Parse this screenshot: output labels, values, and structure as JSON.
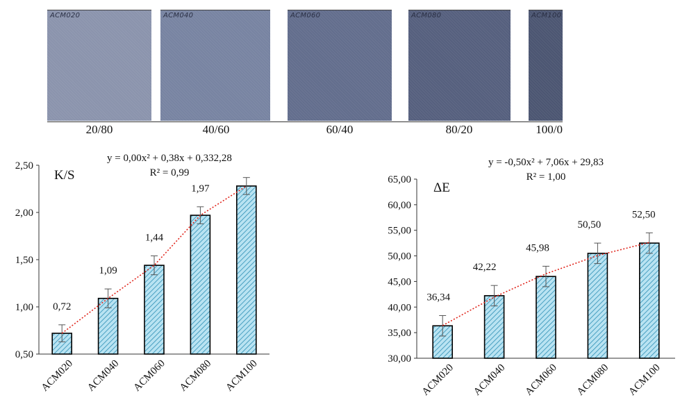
{
  "swatches": [
    {
      "tag": "ACM020",
      "ratio": "20/80",
      "color": "#8b94ad"
    },
    {
      "tag": "ACM040",
      "ratio": "40/60",
      "color": "#7884a2"
    },
    {
      "tag": "ACM060",
      "ratio": "60/40",
      "color": "#636e8d"
    },
    {
      "tag": "ACM080",
      "ratio": "80/20",
      "color": "#56607e"
    },
    {
      "tag": "ACM100",
      "ratio": "100/0",
      "color": "#4c5672"
    }
  ],
  "chart_data": [
    {
      "type": "bar",
      "title": "K/S",
      "equation": "y = 0,00x² + 0,38x + 0,332,28",
      "r2": "R² = 0,99",
      "categories": [
        "ACM020",
        "ACM040",
        "ACM060",
        "ACM080",
        "ACM100"
      ],
      "values": [
        0.72,
        1.09,
        1.44,
        1.97,
        2.28
      ],
      "value_labels": [
        "0,72",
        "1,09",
        "1,44",
        "1,97",
        ""
      ],
      "errors": [
        0.09,
        0.1,
        0.1,
        0.09,
        0.09
      ],
      "trend": [
        0.72,
        1.09,
        1.44,
        1.97,
        2.28
      ],
      "ylim": [
        0.5,
        2.5
      ],
      "yticks": [
        0.5,
        1.0,
        1.5,
        2.0,
        2.5
      ],
      "ytick_labels": [
        "0,50",
        "1,00",
        "1,50",
        "2,00",
        "2,50"
      ],
      "bar_fill": "#b9e3f2",
      "bar_hatch": "#2d8fb5",
      "trend_color": "#e0241b",
      "legend": "none",
      "grid": false
    },
    {
      "type": "bar",
      "title": "ΔE",
      "equation": "y = -0,50x² + 7,06x + 29,83",
      "r2": "R² = 1,00",
      "categories": [
        "ACM020",
        "ACM040",
        "ACM060",
        "ACM080",
        "ACM100"
      ],
      "values": [
        36.34,
        42.22,
        45.98,
        50.5,
        52.5
      ],
      "value_labels": [
        "36,34",
        "42,22",
        "45,98",
        "50,50",
        "52,50"
      ],
      "errors": [
        2.0,
        2.0,
        2.0,
        2.0,
        2.0
      ],
      "trend": [
        36.39,
        41.95,
        46.51,
        50.07,
        52.63
      ],
      "ylim": [
        30,
        65
      ],
      "yticks": [
        30,
        35,
        40,
        45,
        50,
        55,
        60,
        65
      ],
      "ytick_labels": [
        "30,00",
        "35,00",
        "40,00",
        "45,00",
        "50,00",
        "55,00",
        "60,00",
        "65,00"
      ],
      "bar_fill": "#b9e3f2",
      "bar_hatch": "#2d8fb5",
      "trend_color": "#e0241b",
      "legend": "none",
      "grid": false
    }
  ]
}
